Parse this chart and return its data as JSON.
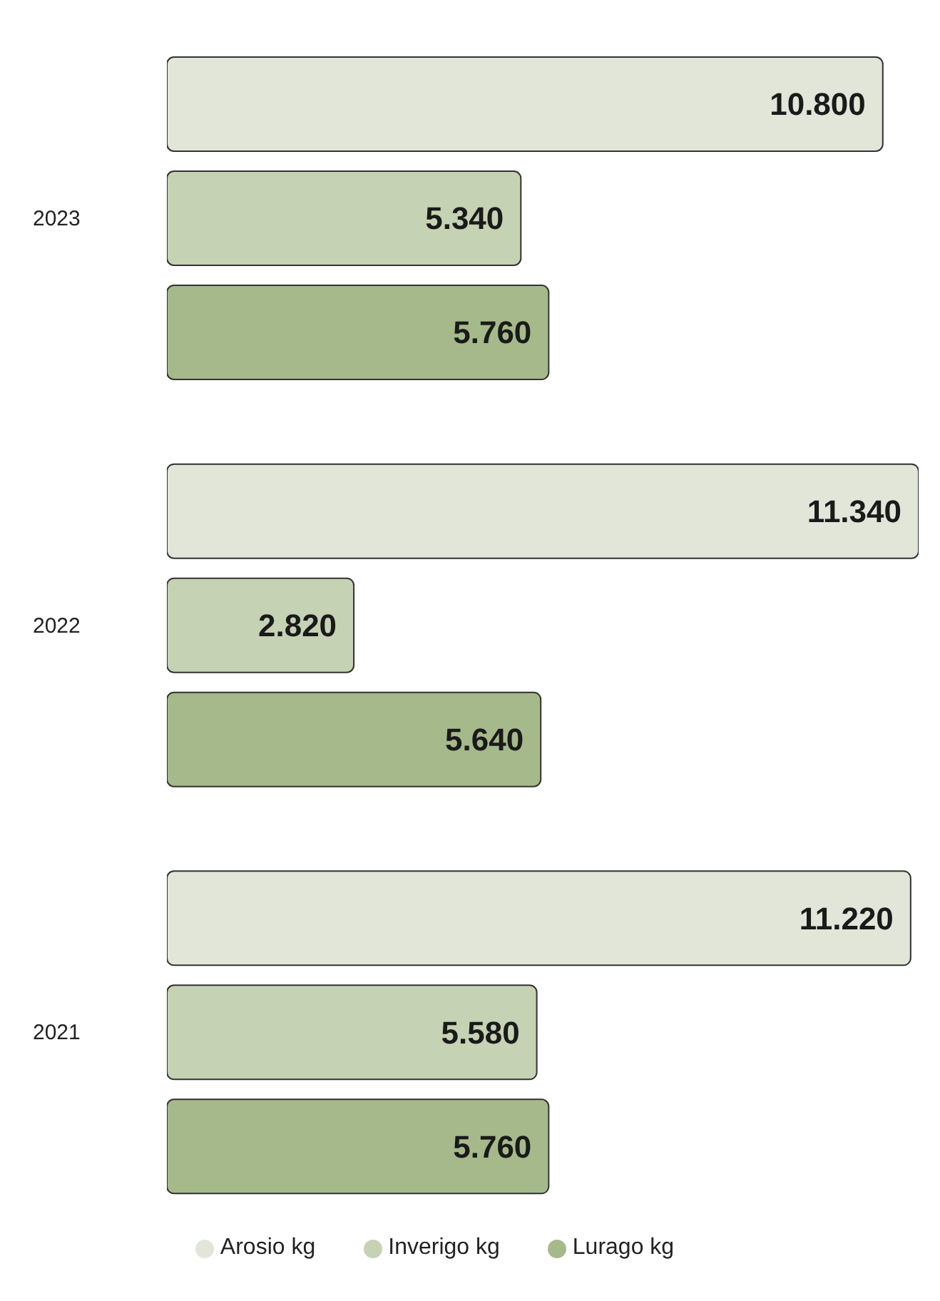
{
  "chart_data": {
    "type": "bar",
    "orientation": "horizontal",
    "categories": [
      "2023",
      "2022",
      "2021"
    ],
    "tick_labels": "y",
    "legend": "bottom",
    "series": [
      {
        "name": "Arosio kg",
        "color": "#e1e6d9",
        "values": [
          10800,
          11340,
          11220
        ],
        "value_labels": [
          "10.800",
          "11.340",
          "11.220"
        ]
      },
      {
        "name": "Inverigo kg",
        "color": "#c5d2b3",
        "values": [
          5340,
          2820,
          5580
        ],
        "value_labels": [
          "5.340",
          "2.820",
          "5.580"
        ]
      },
      {
        "name": "Lurago kg",
        "color": "#a6b98a",
        "values": [
          5760,
          5640,
          5760
        ],
        "value_labels": [
          "5.760",
          "5.640",
          "5.760"
        ]
      }
    ]
  }
}
